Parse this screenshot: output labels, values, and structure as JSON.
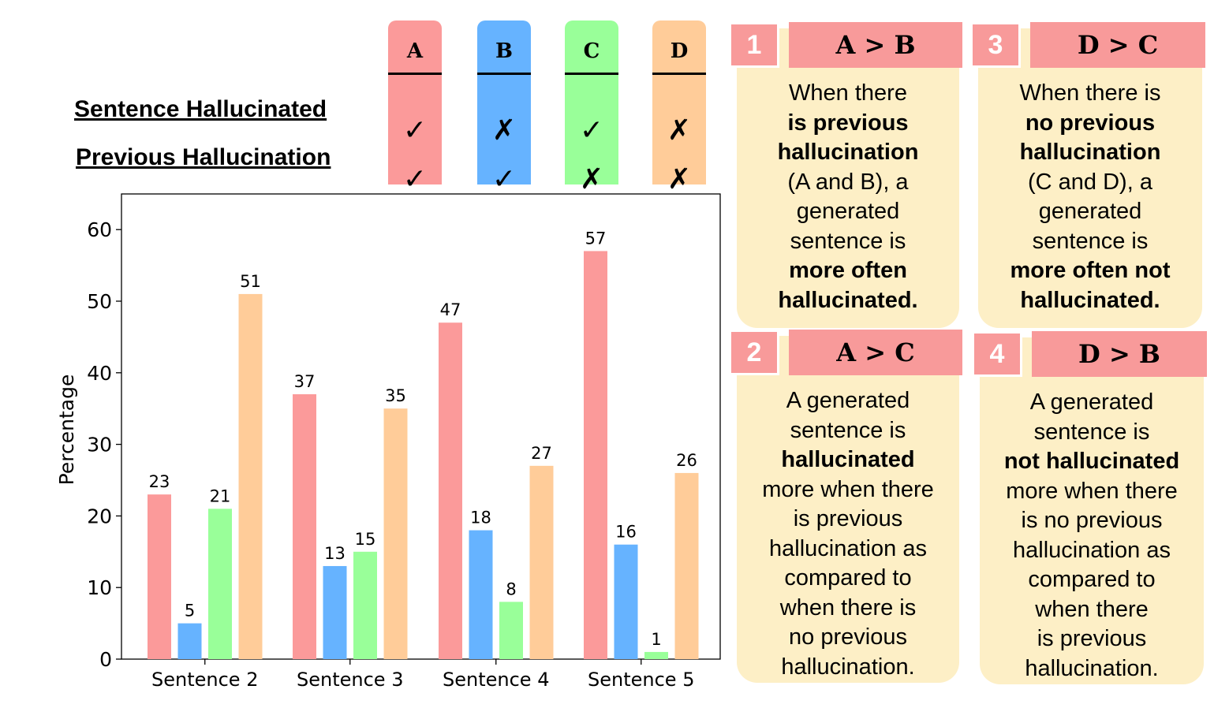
{
  "legend": {
    "row_labels": [
      "Sentence Hallucinated",
      "Previous Hallucination"
    ],
    "categories": [
      {
        "label": "A",
        "color": "#fb9a9a",
        "sentence_mark": "✓",
        "previous_mark": "✓"
      },
      {
        "label": "B",
        "color": "#66b3ff",
        "sentence_mark": "✗",
        "previous_mark": "✓"
      },
      {
        "label": "C",
        "color": "#99ff99",
        "sentence_mark": "✓",
        "previous_mark": "✗"
      },
      {
        "label": "D",
        "color": "#ffcc99",
        "sentence_mark": "✗",
        "previous_mark": "✗"
      }
    ]
  },
  "chart_data": {
    "type": "bar",
    "categories": [
      "Sentence 2",
      "Sentence 3",
      "Sentence 4",
      "Sentence 5"
    ],
    "series": [
      {
        "name": "A",
        "color": "#fb9a9a",
        "values": [
          23,
          37,
          47,
          57
        ]
      },
      {
        "name": "B",
        "color": "#66b3ff",
        "values": [
          5,
          13,
          18,
          16
        ]
      },
      {
        "name": "C",
        "color": "#99ff99",
        "values": [
          21,
          15,
          8,
          1
        ]
      },
      {
        "name": "D",
        "color": "#ffcc99",
        "values": [
          51,
          35,
          27,
          26
        ]
      }
    ],
    "ylabel": "Percentage",
    "ylim": [
      0,
      65
    ],
    "yticks": [
      0,
      10,
      20,
      30,
      40,
      50,
      60
    ],
    "data_labels": true,
    "grid": false
  },
  "cards": [
    {
      "number": "1",
      "title": "A > B",
      "lines": [
        {
          "t": "When there",
          "b": false
        },
        {
          "t": "is previous",
          "b": true
        },
        {
          "t": "hallucination",
          "b": true
        },
        {
          "t": "(A and B), a",
          "b": false
        },
        {
          "t": "generated",
          "b": false
        },
        {
          "t": "sentence is",
          "b": false
        },
        {
          "t": "more often",
          "b": true
        },
        {
          "t": "hallucinated.",
          "b": true
        }
      ]
    },
    {
      "number": "3",
      "title": "D > C",
      "lines": [
        {
          "t": "When there is",
          "b": false
        },
        {
          "t": "no previous",
          "b": true
        },
        {
          "t": "hallucination",
          "b": true
        },
        {
          "t": "(C and D), a",
          "b": false
        },
        {
          "t": "generated",
          "b": false
        },
        {
          "t": "sentence is",
          "b": false
        },
        {
          "t": "more often not",
          "b": true
        },
        {
          "t": "hallucinated.",
          "b": true
        }
      ]
    },
    {
      "number": "2",
      "title": "A > C",
      "lines": [
        {
          "t": "A generated",
          "b": false
        },
        {
          "t": "sentence is",
          "b": false
        },
        {
          "t": "hallucinated",
          "b": true
        },
        {
          "t": "more when there",
          "b": false
        },
        {
          "t": "is previous",
          "b": false
        },
        {
          "t": "hallucination as",
          "b": false
        },
        {
          "t": "compared to",
          "b": false
        },
        {
          "t": "when there is",
          "b": false
        },
        {
          "t": "no previous",
          "b": false
        },
        {
          "t": "hallucination.",
          "b": false
        }
      ]
    },
    {
      "number": "4",
      "title": "D > B",
      "lines": [
        {
          "t": "A generated",
          "b": false
        },
        {
          "t": "sentence is",
          "b": false
        },
        {
          "t": "not hallucinated",
          "b": true
        },
        {
          "t": "more when there",
          "b": false
        },
        {
          "t": "is no previous",
          "b": false
        },
        {
          "t": "hallucination as",
          "b": false
        },
        {
          "t": "compared to",
          "b": false
        },
        {
          "t": "when there",
          "b": false
        },
        {
          "t": "is previous",
          "b": false
        },
        {
          "t": "hallucination.",
          "b": false
        }
      ]
    }
  ]
}
